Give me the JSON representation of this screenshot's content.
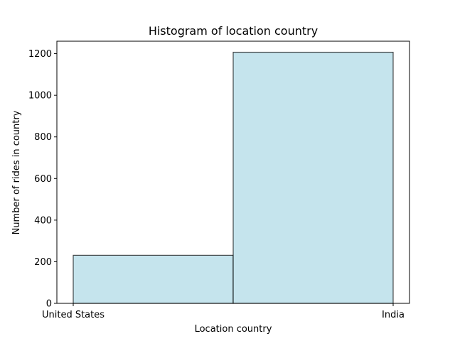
{
  "chart_data": {
    "type": "bar",
    "title": "Histogram of location country",
    "xlabel": "Location country",
    "ylabel": "Number of rides in country",
    "categories": [
      "United States",
      "India"
    ],
    "values": [
      231,
      1207
    ],
    "ylim": [
      0,
      1260
    ],
    "yticks": [
      0,
      200,
      400,
      600,
      800,
      1000,
      1200
    ],
    "xticks": [
      "United States",
      "India"
    ],
    "bar_color": "#add8e6",
    "bar_edge_color": "#000000",
    "grid": false,
    "legend": "none"
  }
}
